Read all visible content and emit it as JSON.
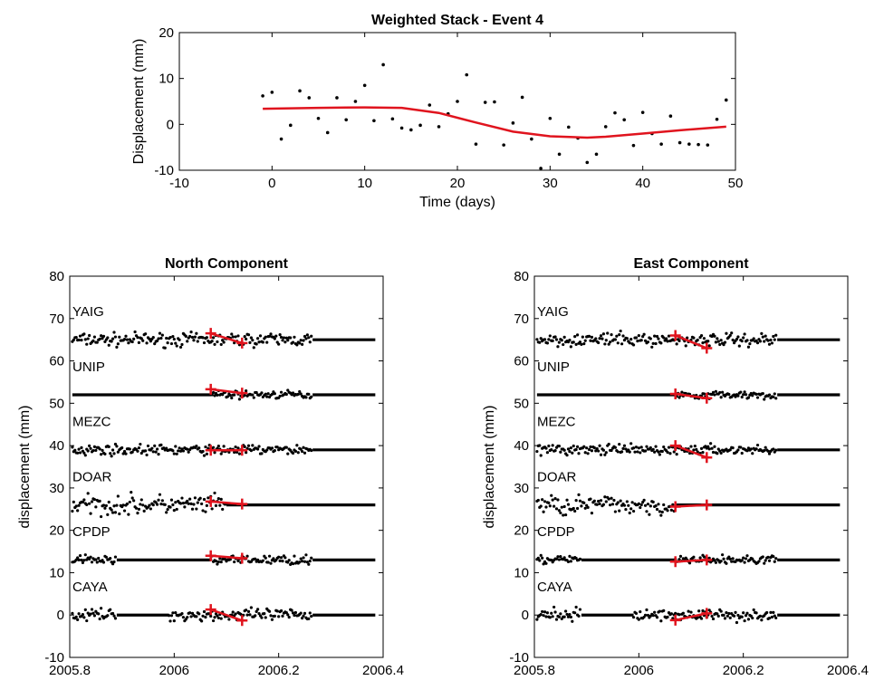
{
  "chart_data": [
    {
      "type": "scatter",
      "title": "Weighted Stack - Event 4",
      "xlabel": "Time (days)",
      "ylabel": "Displacement (mm)",
      "xlim": [
        -10,
        50
      ],
      "ylim": [
        -10,
        20
      ],
      "xticks": [
        -10,
        0,
        10,
        20,
        30,
        40,
        50
      ],
      "yticks": [
        -10,
        0,
        10,
        20
      ],
      "grid": false,
      "series": [
        {
          "type": "scatter",
          "color": "#000000",
          "x": [
            -1,
            0,
            1,
            2,
            3,
            4,
            5,
            6,
            7,
            8,
            9,
            10,
            11,
            12,
            13,
            14,
            15,
            16,
            17,
            18,
            19,
            20,
            21,
            22,
            23,
            24,
            25,
            26,
            27,
            28,
            29,
            30,
            31,
            32,
            33,
            34,
            35,
            36,
            37,
            38,
            39,
            40,
            41,
            42,
            43,
            44,
            45,
            46,
            47,
            48,
            49
          ],
          "y": [
            6.2,
            7,
            -3.2,
            -0.2,
            7.3,
            5.8,
            1.3,
            -1.8,
            5.8,
            1,
            5,
            8.5,
            0.8,
            13,
            1.2,
            -0.8,
            -1.2,
            -0.2,
            4.2,
            -0.5,
            2.3,
            5,
            10.8,
            -4.3,
            4.8,
            4.9,
            -4.5,
            0.3,
            5.9,
            -3.2,
            -9.6,
            1.3,
            -6.5,
            -0.6,
            -3,
            -8.3,
            -6.5,
            -0.5,
            2.5,
            1,
            -4.6,
            2.6,
            -2,
            -4.3,
            1.8,
            -4,
            -4.3,
            -4.4,
            -4.5,
            1.1,
            5.3
          ]
        },
        {
          "type": "line",
          "color": "#e0141e",
          "x": [
            -1,
            5,
            10,
            14,
            18,
            22,
            26,
            30,
            34,
            36,
            40,
            44,
            49
          ],
          "y": [
            3.4,
            3.6,
            3.7,
            3.6,
            2.5,
            0.4,
            -1.6,
            -2.6,
            -2.9,
            -2.7,
            -2,
            -1.3,
            -0.5
          ]
        }
      ]
    },
    {
      "type": "scatter",
      "title": "North Component",
      "xlabel": "",
      "ylabel": "displacement (mm)",
      "xlim": [
        2005.8,
        2006.4
      ],
      "ylim": [
        -10,
        80
      ],
      "xticks": [
        2005.8,
        2006,
        2006.2,
        2006.4
      ],
      "yticks": [
        -10,
        0,
        10,
        20,
        30,
        40,
        50,
        60,
        70,
        80
      ],
      "grid": false,
      "stations": [
        {
          "name": "YAIG",
          "offset": 65,
          "scatter_ranges": [
            [
              2005.805,
              2006.265
            ]
          ],
          "flat_ranges": [
            [
              2006.265,
              2006.385
            ]
          ],
          "noise": 1.3,
          "fit": [
            [
              2006.07,
              66.5
            ],
            [
              2006.13,
              64.2
            ]
          ]
        },
        {
          "name": "UNIP",
          "offset": 52,
          "scatter_ranges": [
            [
              2006.07,
              2006.265
            ]
          ],
          "flat_ranges": [
            [
              2005.805,
              2006.07
            ],
            [
              2006.265,
              2006.385
            ]
          ],
          "noise": 0.8,
          "fit": [
            [
              2006.07,
              53.3
            ],
            [
              2006.13,
              52.4
            ]
          ]
        },
        {
          "name": "MEZC",
          "offset": 39,
          "scatter_ranges": [
            [
              2005.805,
              2006.265
            ]
          ],
          "flat_ranges": [
            [
              2006.265,
              2006.385
            ]
          ],
          "noise": 1.0,
          "fit": [
            [
              2006.07,
              38.9
            ],
            [
              2006.13,
              38.9
            ]
          ]
        },
        {
          "name": "DOAR",
          "offset": 26,
          "scatter_ranges": [
            [
              2005.805,
              2006.1
            ]
          ],
          "flat_ranges": [
            [
              2006.1,
              2006.385
            ]
          ],
          "noise": 2.0,
          "fit": [
            [
              2006.07,
              26.8
            ],
            [
              2006.13,
              26.2
            ]
          ]
        },
        {
          "name": "CPDP",
          "offset": 13,
          "scatter_ranges": [
            [
              2005.805,
              2005.89
            ],
            [
              2006.07,
              2006.265
            ]
          ],
          "flat_ranges": [
            [
              2005.89,
              2006.07
            ],
            [
              2006.265,
              2006.385
            ]
          ],
          "noise": 0.9,
          "fit": [
            [
              2006.07,
              14.0
            ],
            [
              2006.13,
              13.4
            ]
          ]
        },
        {
          "name": "CAYA",
          "offset": 0,
          "scatter_ranges": [
            [
              2005.805,
              2005.89
            ],
            [
              2005.99,
              2006.265
            ]
          ],
          "flat_ranges": [
            [
              2005.89,
              2005.99
            ],
            [
              2006.265,
              2006.385
            ]
          ],
          "noise": 1.2,
          "fit": [
            [
              2006.07,
              1.3
            ],
            [
              2006.13,
              -1.3
            ]
          ]
        }
      ]
    },
    {
      "type": "scatter",
      "title": "East Component",
      "xlabel": "",
      "ylabel": "displacement (mm)",
      "xlim": [
        2005.8,
        2006.4
      ],
      "ylim": [
        -10,
        80
      ],
      "xticks": [
        2005.8,
        2006,
        2006.2,
        2006.4
      ],
      "yticks": [
        -10,
        0,
        10,
        20,
        30,
        40,
        50,
        60,
        70,
        80
      ],
      "grid": false,
      "stations": [
        {
          "name": "YAIG",
          "offset": 65,
          "scatter_ranges": [
            [
              2005.805,
              2006.265
            ]
          ],
          "flat_ranges": [
            [
              2006.265,
              2006.385
            ]
          ],
          "noise": 1.3,
          "fit": [
            [
              2006.07,
              66.0
            ],
            [
              2006.13,
              63.0
            ]
          ]
        },
        {
          "name": "UNIP",
          "offset": 52,
          "scatter_ranges": [
            [
              2006.07,
              2006.265
            ]
          ],
          "flat_ranges": [
            [
              2005.805,
              2006.07
            ],
            [
              2006.265,
              2006.385
            ]
          ],
          "noise": 0.8,
          "fit": [
            [
              2006.07,
              52.2
            ],
            [
              2006.13,
              51.2
            ]
          ]
        },
        {
          "name": "MEZC",
          "offset": 39,
          "scatter_ranges": [
            [
              2005.805,
              2006.265
            ]
          ],
          "flat_ranges": [
            [
              2006.265,
              2006.385
            ]
          ],
          "noise": 1.0,
          "fit": [
            [
              2006.07,
              40.0
            ],
            [
              2006.13,
              37.2
            ]
          ]
        },
        {
          "name": "DOAR",
          "offset": 26,
          "scatter_ranges": [
            [
              2005.805,
              2006.07
            ]
          ],
          "flat_ranges": [
            [
              2006.07,
              2006.385
            ]
          ],
          "noise": 2.0,
          "fit": [
            [
              2006.07,
              25.6
            ],
            [
              2006.13,
              26.0
            ]
          ]
        },
        {
          "name": "CPDP",
          "offset": 13,
          "scatter_ranges": [
            [
              2005.805,
              2005.89
            ],
            [
              2006.07,
              2006.265
            ]
          ],
          "flat_ranges": [
            [
              2005.89,
              2006.07
            ],
            [
              2006.265,
              2006.385
            ]
          ],
          "noise": 0.9,
          "fit": [
            [
              2006.07,
              12.6
            ],
            [
              2006.13,
              13.0
            ]
          ]
        },
        {
          "name": "CAYA",
          "offset": 0,
          "scatter_ranges": [
            [
              2005.805,
              2005.89
            ],
            [
              2005.99,
              2006.265
            ]
          ],
          "flat_ranges": [
            [
              2005.89,
              2005.99
            ],
            [
              2006.265,
              2006.385
            ]
          ],
          "noise": 1.2,
          "fit": [
            [
              2006.07,
              -1.2
            ],
            [
              2006.13,
              0.4
            ]
          ]
        }
      ]
    }
  ]
}
